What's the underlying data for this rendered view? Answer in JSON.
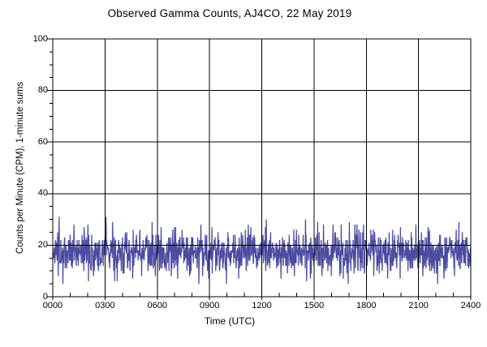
{
  "chart": {
    "title": "Observed Gamma Counts, AJ4CO, 22 May 2019",
    "xlabel": "Time (UTC)",
    "ylabel": "Counts per Minute (CPM), 1-minute sums"
  },
  "colors": {
    "background": "#ffffff",
    "axis_and_grid": "#000000",
    "text": "#000000",
    "series": "#4a4aa0",
    "series_halo": "#a8a8d4"
  },
  "chart_data": {
    "type": "line",
    "title": "Observed Gamma Counts, AJ4CO, 22 May 2019",
    "xlabel": "Time (UTC)",
    "ylabel": "Counts per Minute (CPM), 1-minute sums",
    "xlim_minutes": [
      0,
      1440
    ],
    "ylim": [
      0,
      100
    ],
    "x_major_ticks": [
      {
        "label": "0000",
        "minute": 0
      },
      {
        "label": "0300",
        "minute": 180
      },
      {
        "label": "0600",
        "minute": 360
      },
      {
        "label": "0900",
        "minute": 540
      },
      {
        "label": "1200",
        "minute": 720
      },
      {
        "label": "1500",
        "minute": 900
      },
      {
        "label": "1800",
        "minute": 1080
      },
      {
        "label": "2100",
        "minute": 1260
      },
      {
        "label": "2400",
        "minute": 1440
      }
    ],
    "x_minor_tick_interval_minutes": 60,
    "y_major_ticks": [
      0,
      20,
      40,
      60,
      80,
      100
    ],
    "y_minor_tick_interval": 5,
    "grid": {
      "vertical_at_x_majors": true,
      "horizontal_at_y_majors": true,
      "color": "#000000",
      "drawn_over_series": true
    },
    "legend": "none",
    "series": [
      {
        "name": "gamma counts, 1-minute sums",
        "points_per_day": 1440,
        "sample_interval_minutes": 1,
        "color": "#4a4aa0",
        "approx_mean_cpm": 17.3,
        "approx_sd_cpm": 4.1,
        "typical_range_cpm": [
          10,
          25
        ],
        "observed_min_cpm": 5,
        "observed_max_cpm": 31,
        "generation": {
          "method": "seeded-gaussian",
          "seed": 20190522,
          "mean": 17.3,
          "sd": 4.1,
          "clamp": [
            5,
            31
          ],
          "round_to_integer": true
        },
        "notable_spikes": [
          {
            "minute": 22,
            "cpm": 31
          },
          {
            "minute": 183,
            "cpm": 31
          },
          {
            "minute": 300,
            "cpm": 26
          },
          {
            "minute": 510,
            "cpm": 28
          },
          {
            "minute": 870,
            "cpm": 30
          },
          {
            "minute": 912,
            "cpm": 29
          },
          {
            "minute": 1250,
            "cpm": 28
          },
          {
            "minute": 1398,
            "cpm": 29
          }
        ],
        "notable_dips": [
          {
            "minute": 35,
            "cpm": 5
          },
          {
            "minute": 640,
            "cpm": 7
          },
          {
            "minute": 1000,
            "cpm": 7
          }
        ]
      }
    ]
  }
}
